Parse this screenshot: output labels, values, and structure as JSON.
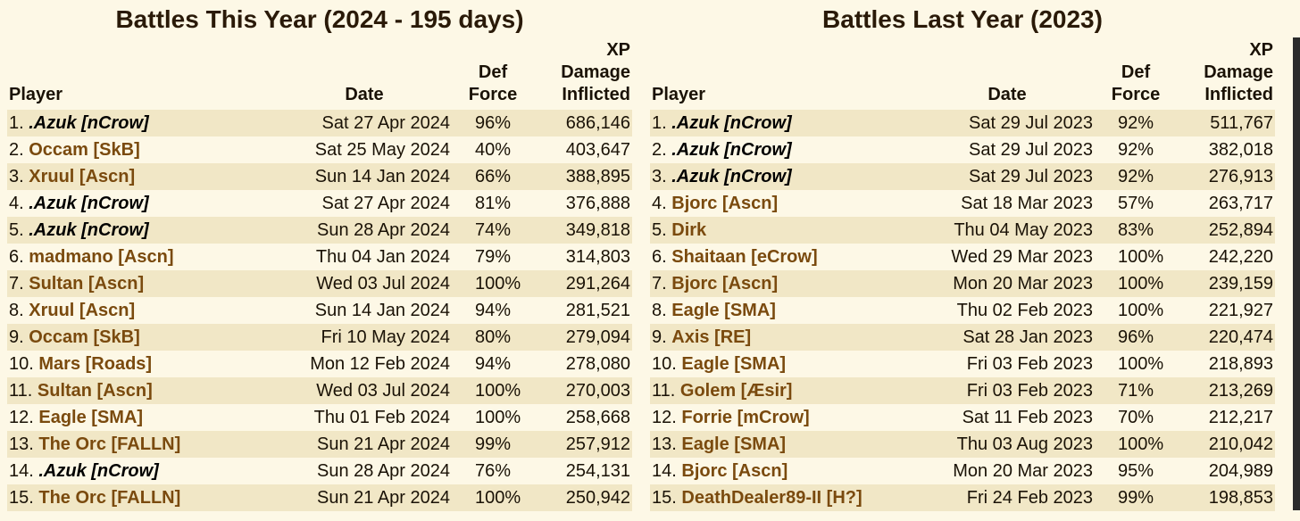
{
  "left": {
    "title": "Battles This Year (2024 - 195 days)",
    "headers": {
      "player": "Player",
      "date": "Date",
      "def1": "Def",
      "def2": "Force",
      "xp1": "XP",
      "xp2": "Damage",
      "xp3": "Inflicted"
    },
    "rows": [
      {
        "rank": "1.",
        "player": ".Azuk [nCrow]",
        "special": true,
        "date": "Sat 27 Apr 2024",
        "def": "96%",
        "xp": "686,146"
      },
      {
        "rank": "2.",
        "player": "Occam [SkB]",
        "special": false,
        "date": "Sat 25 May 2024",
        "def": "40%",
        "xp": "403,647"
      },
      {
        "rank": "3.",
        "player": "Xruul [Ascn]",
        "special": false,
        "date": "Sun 14 Jan 2024",
        "def": "66%",
        "xp": "388,895"
      },
      {
        "rank": "4.",
        "player": ".Azuk [nCrow]",
        "special": true,
        "date": "Sat 27 Apr 2024",
        "def": "81%",
        "xp": "376,888"
      },
      {
        "rank": "5.",
        "player": ".Azuk [nCrow]",
        "special": true,
        "date": "Sun 28 Apr 2024",
        "def": "74%",
        "xp": "349,818"
      },
      {
        "rank": "6.",
        "player": "madmano [Ascn]",
        "special": false,
        "date": "Thu 04 Jan 2024",
        "def": "79%",
        "xp": "314,803"
      },
      {
        "rank": "7.",
        "player": "Sultan [Ascn]",
        "special": false,
        "date": "Wed 03 Jul 2024",
        "def": "100%",
        "xp": "291,264"
      },
      {
        "rank": "8.",
        "player": "Xruul [Ascn]",
        "special": false,
        "date": "Sun 14 Jan 2024",
        "def": "94%",
        "xp": "281,521"
      },
      {
        "rank": "9.",
        "player": "Occam [SkB]",
        "special": false,
        "date": "Fri 10 May 2024",
        "def": "80%",
        "xp": "279,094"
      },
      {
        "rank": "10.",
        "player": "Mars [Roads]",
        "special": false,
        "date": "Mon 12 Feb 2024",
        "def": "94%",
        "xp": "278,080"
      },
      {
        "rank": "11.",
        "player": "Sultan [Ascn]",
        "special": false,
        "date": "Wed 03 Jul 2024",
        "def": "100%",
        "xp": "270,003"
      },
      {
        "rank": "12.",
        "player": "Eagle [SMA]",
        "special": false,
        "date": "Thu 01 Feb 2024",
        "def": "100%",
        "xp": "258,668"
      },
      {
        "rank": "13.",
        "player": "The Orc [FALLN]",
        "special": false,
        "date": "Sun 21 Apr 2024",
        "def": "99%",
        "xp": "257,912"
      },
      {
        "rank": "14.",
        "player": ".Azuk [nCrow]",
        "special": true,
        "date": "Sun 28 Apr 2024",
        "def": "76%",
        "xp": "254,131"
      },
      {
        "rank": "15.",
        "player": "The Orc [FALLN]",
        "special": false,
        "date": "Sun 21 Apr 2024",
        "def": "100%",
        "xp": "250,942"
      }
    ]
  },
  "right": {
    "title": "Battles Last Year (2023)",
    "headers": {
      "player": "Player",
      "date": "Date",
      "def1": "Def",
      "def2": "Force",
      "xp1": "XP",
      "xp2": "Damage",
      "xp3": "Inflicted"
    },
    "rows": [
      {
        "rank": "1.",
        "player": ".Azuk [nCrow]",
        "special": true,
        "date": "Sat 29 Jul 2023",
        "def": "92%",
        "xp": "511,767"
      },
      {
        "rank": "2.",
        "player": ".Azuk [nCrow]",
        "special": true,
        "date": "Sat 29 Jul 2023",
        "def": "92%",
        "xp": "382,018"
      },
      {
        "rank": "3.",
        "player": ".Azuk [nCrow]",
        "special": true,
        "date": "Sat 29 Jul 2023",
        "def": "92%",
        "xp": "276,913"
      },
      {
        "rank": "4.",
        "player": "Bjorc [Ascn]",
        "special": false,
        "date": "Sat 18 Mar 2023",
        "def": "57%",
        "xp": "263,717"
      },
      {
        "rank": "5.",
        "player": "Dirk",
        "special": false,
        "date": "Thu 04 May 2023",
        "def": "83%",
        "xp": "252,894"
      },
      {
        "rank": "6.",
        "player": "Shaitaan [eCrow]",
        "special": false,
        "date": "Wed 29 Mar 2023",
        "def": "100%",
        "xp": "242,220"
      },
      {
        "rank": "7.",
        "player": "Bjorc [Ascn]",
        "special": false,
        "date": "Mon 20 Mar 2023",
        "def": "100%",
        "xp": "239,159"
      },
      {
        "rank": "8.",
        "player": "Eagle [SMA]",
        "special": false,
        "date": "Thu 02 Feb 2023",
        "def": "100%",
        "xp": "221,927"
      },
      {
        "rank": "9.",
        "player": "Axis [RE]",
        "special": false,
        "date": "Sat 28 Jan 2023",
        "def": "96%",
        "xp": "220,474"
      },
      {
        "rank": "10.",
        "player": "Eagle [SMA]",
        "special": false,
        "date": "Fri 03 Feb 2023",
        "def": "100%",
        "xp": "218,893"
      },
      {
        "rank": "11.",
        "player": "Golem [Æsir]",
        "special": false,
        "date": "Fri 03 Feb 2023",
        "def": "71%",
        "xp": "213,269"
      },
      {
        "rank": "12.",
        "player": "Forrie [mCrow]",
        "special": false,
        "date": "Sat 11 Feb 2023",
        "def": "70%",
        "xp": "212,217"
      },
      {
        "rank": "13.",
        "player": "Eagle [SMA]",
        "special": false,
        "date": "Thu 03 Aug 2023",
        "def": "100%",
        "xp": "210,042"
      },
      {
        "rank": "14.",
        "player": "Bjorc [Ascn]",
        "special": false,
        "date": "Mon 20 Mar 2023",
        "def": "95%",
        "xp": "204,989"
      },
      {
        "rank": "15.",
        "player": "DeathDealer89-II [H?]",
        "special": false,
        "date": "Fri 24 Feb 2023",
        "def": "99%",
        "xp": "198,853"
      }
    ]
  }
}
